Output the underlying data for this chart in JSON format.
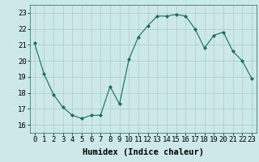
{
  "x": [
    0,
    1,
    2,
    3,
    4,
    5,
    6,
    7,
    8,
    9,
    10,
    11,
    12,
    13,
    14,
    15,
    16,
    17,
    18,
    19,
    20,
    21,
    22,
    23
  ],
  "y": [
    21.1,
    19.2,
    17.9,
    17.1,
    16.6,
    16.4,
    16.6,
    16.6,
    18.4,
    17.3,
    20.1,
    21.5,
    22.2,
    22.8,
    22.8,
    22.9,
    22.8,
    22.0,
    20.8,
    21.6,
    21.8,
    20.6,
    20.0,
    18.9
  ],
  "line_color": "#1a6b5e",
  "marker": "D",
  "marker_size": 2.0,
  "bg_color": "#cce8e8",
  "grid_color": "#aacccc",
  "xlabel": "Humidex (Indice chaleur)",
  "xlim": [
    -0.5,
    23.5
  ],
  "ylim": [
    15.5,
    23.5
  ],
  "yticks": [
    16,
    17,
    18,
    19,
    20,
    21,
    22,
    23
  ],
  "xticks": [
    0,
    1,
    2,
    3,
    4,
    5,
    6,
    7,
    8,
    9,
    10,
    11,
    12,
    13,
    14,
    15,
    16,
    17,
    18,
    19,
    20,
    21,
    22,
    23
  ],
  "xtick_labels": [
    "0",
    "1",
    "2",
    "3",
    "4",
    "5",
    "6",
    "7",
    "8",
    "9",
    "10",
    "11",
    "12",
    "13",
    "14",
    "15",
    "16",
    "17",
    "18",
    "19",
    "20",
    "21",
    "22",
    "23"
  ],
  "xlabel_fontsize": 7.5,
  "tick_fontsize": 6.5
}
